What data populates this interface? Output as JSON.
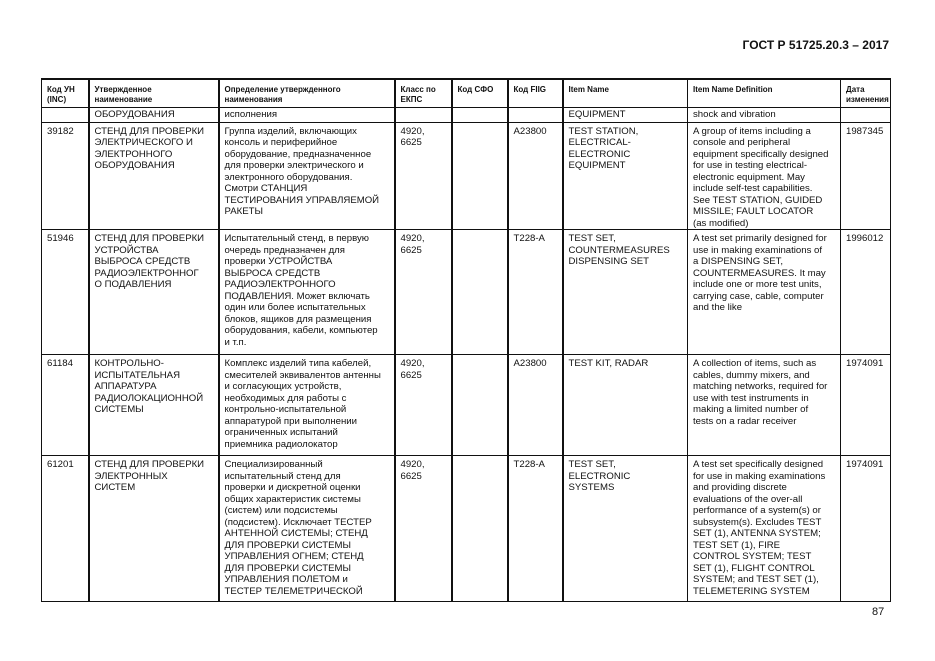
{
  "header": {
    "doc_title": "ГОСТ Р 51725.20.3 – 2017"
  },
  "table": {
    "columns": [
      "Код УН\n(INC)",
      "Утвержденное\nнаименование",
      "Определение утвержденного\nнаименования",
      "Класс по\nЕКПС",
      "Код СФО",
      "Код FIIG",
      "Item Name",
      "Item Name Definition",
      "Дата\nизменения"
    ],
    "rows": [
      [
        "",
        "ОБОРУДОВАНИЯ",
        "исполнения",
        "",
        "",
        "",
        "EQUIPMENT",
        "shock and vibration",
        ""
      ],
      [
        "39182",
        "СТЕНД ДЛЯ ПРОВЕРКИ\nЭЛЕКТРИЧЕСКОГО И\nЭЛЕКТРОННОГО\nОБОРУДОВАНИЯ",
        "Группа изделий, включающих\nконсоль и периферийное\nоборудование, предназначенное\nдля проверки электрического и\nэлектронного оборудования.\nСмотри СТАНЦИЯ\nТЕСТИРОВАНИЯ УПРАВЛЯЕМОЙ\nРАКЕТЫ",
        "4920,\n6625",
        "",
        "A23800",
        "TEST STATION,\nELECTRICAL-\nELECTRONIC\nEQUIPMENT",
        "A group of items including a\nconsole and peripheral\nequipment specifically designed\nfor use in testing electrical-\nelectronic equipment. May\ninclude self-test capabilities.\nSee TEST STATION, GUIDED\nMISSILE; FAULT LOCATOR\n(as modified)",
        "1987345"
      ],
      [
        "51946",
        "СТЕНД ДЛЯ ПРОВЕРКИ\nУСТРОЙСТВА\nВЫБРОСА СРЕДСТВ\nРАДИОЭЛЕКТРОННОГ\nО ПОДАВЛЕНИЯ",
        "Испытательный стенд, в первую\nочередь предназначен для\nпроверки УСТРОЙСТВА\nВЫБРОСА СРЕДСТВ\nРАДИОЭЛЕКТРОННОГО\nПОДАВЛЕНИЯ. Может включать\nодин или более испытательных\nблоков, ящиков для размещения\nоборудования, кабели, компьютер\nи т.п.",
        "4920,\n6625",
        "",
        "T228-A",
        "TEST SET,\nCOUNTERMEASURES\nDISPENSING SET",
        "A test set primarily designed for\nuse in making examinations of\na DISPENSING SET,\nCOUNTERMEASURES. It may\ninclude one or more test units,\ncarrying case, cable, computer\nand the like",
        "1996012"
      ],
      [
        "61184",
        "КОНТРОЛЬНО-\nИСПЫТАТЕЛЬНАЯ\nАППАРАТУРА\nРАДИОЛОКАЦИОННОЙ\nСИСТЕМЫ",
        "Комплекс изделий типа кабелей,\nсмесителей эквивалентов антенны\nи согласующих устройств,\nнеобходимых для работы с\nконтрольно-испытательной\nаппаратурой при выполнении\nограниченных испытаний\nприемника радиолокатор",
        "4920,\n6625",
        "",
        "A23800",
        "TEST KIT, RADAR",
        "A collection of items, such as\ncables, dummy mixers, and\nmatching networks, required for\nuse with test instruments in\nmaking a limited number of\ntests on a radar receiver",
        "1974091"
      ],
      [
        "61201",
        "СТЕНД ДЛЯ ПРОВЕРКИ\nЭЛЕКТРОННЫХ\nСИСТЕМ",
        "Специализированный\nиспытательный стенд для\nпроверки и дискретной оценки\nобщих характеристик системы\n(систем) или подсистемы\n(подсистем). Исключает ТЕСТЕР\nАНТЕННОЙ СИСТЕМЫ; СТЕНД\nДЛЯ ПРОВЕРКИ СИСТЕМЫ\nУПРАВЛЕНИЯ ОГНЕМ; СТЕНД\nДЛЯ ПРОВЕРКИ СИСТЕМЫ\nУПРАВЛЕНИЯ ПОЛЕТОМ и\nТЕСТЕР ТЕЛЕМЕТРИЧЕСКОЙ",
        "4920,\n6625",
        "",
        "T228-A",
        "TEST SET,\nELECTRONIC\nSYSTEMS",
        "A test set specifically designed\nfor use in making examinations\nand providing discrete\nevaluations of the over-all\nperformance of a system(s) or\nsubsystem(s). Excludes TEST\nSET (1), ANTENNA SYSTEM;\nTEST SET (1), FIRE\nCONTROL SYSTEM; TEST\nSET (1), FLIGHT CONTROL\nSYSTEM; and TEST SET (1),\nTELEMETERING SYSTEM",
        "1974091"
      ]
    ]
  },
  "footer": {
    "page_number": "87"
  }
}
